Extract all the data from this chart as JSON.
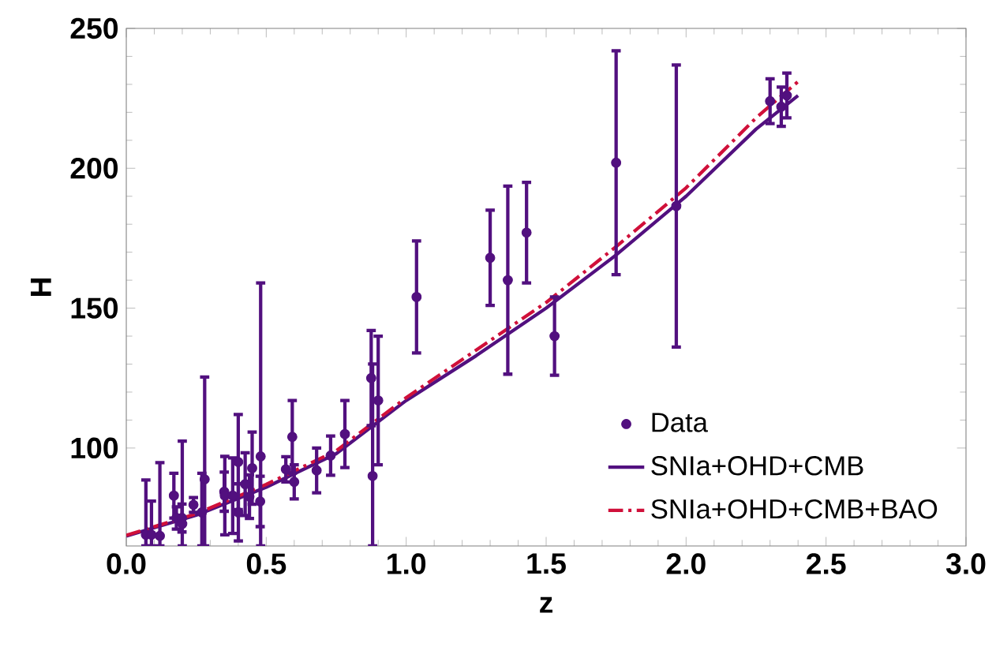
{
  "chart_data": {
    "type": "scatter",
    "xlabel": "z",
    "ylabel": "H",
    "xlim": [
      0,
      3
    ],
    "ylim": [
      65,
      250
    ],
    "xticks": [
      {
        "value": 0,
        "label": "0.0"
      },
      {
        "value": 0.5,
        "label": "0.5"
      },
      {
        "value": 1,
        "label": "1.0"
      },
      {
        "value": 1.5,
        "label": "1.5"
      },
      {
        "value": 2,
        "label": "2.0"
      },
      {
        "value": 2.5,
        "label": "2.5"
      },
      {
        "value": 3,
        "label": "3.0"
      }
    ],
    "yticks": [
      100,
      150,
      200,
      250
    ],
    "grid": false,
    "legend": "bottom right",
    "series": [
      {
        "name": "Data",
        "type": "scatter",
        "color": "#52107f",
        "marker": "circle",
        "x": [
          0.07,
          0.09,
          0.12,
          0.17,
          0.179,
          0.199,
          0.2,
          0.24,
          0.27,
          0.28,
          0.35,
          0.352,
          0.3802,
          0.4,
          0.4004,
          0.4247,
          0.44,
          0.4497,
          0.4783,
          0.48,
          0.57,
          0.593,
          0.6,
          0.68,
          0.73,
          0.781,
          0.875,
          0.88,
          0.9,
          1.037,
          1.3,
          1.363,
          1.43,
          1.53,
          1.75,
          1.965,
          2.3,
          2.34,
          2.36
        ],
        "values": [
          69,
          69,
          68.6,
          83,
          75,
          75,
          72.9,
          79.7,
          77,
          88.8,
          84.4,
          83,
          83,
          95,
          77,
          87.1,
          82.6,
          92.8,
          80.9,
          97,
          92.4,
          104,
          87.9,
          92,
          97.3,
          105,
          125,
          90,
          117,
          154,
          168,
          160,
          177,
          140,
          202,
          186.5,
          224,
          222,
          226
        ],
        "errors": [
          [
            65,
            88.6
          ],
          [
            65,
            81
          ],
          [
            65,
            94.8
          ],
          [
            75,
            91
          ],
          [
            71,
            79
          ],
          [
            70,
            80
          ],
          [
            65,
            102.5
          ],
          [
            77,
            82.3
          ],
          [
            65,
            91
          ],
          [
            65,
            125.4
          ],
          [
            77.4,
            91.4
          ],
          [
            69,
            97
          ],
          [
            69.5,
            96.5
          ],
          [
            78,
            112
          ],
          [
            66.8,
            87.2
          ],
          [
            75.9,
            98.3
          ],
          [
            74.8,
            90.4
          ],
          [
            79.9,
            105.7
          ],
          [
            71.9,
            89.9
          ],
          [
            65,
            159
          ],
          [
            87.9,
            96.9
          ],
          [
            91,
            117
          ],
          [
            81.8,
            94
          ],
          [
            84,
            100
          ],
          [
            90.3,
            104.3
          ],
          [
            93,
            117
          ],
          [
            108,
            142
          ],
          [
            65,
            130
          ],
          [
            94,
            140
          ],
          [
            134,
            174
          ],
          [
            151,
            185
          ],
          [
            126.4,
            193.6
          ],
          [
            159,
            195
          ],
          [
            126,
            154
          ],
          [
            162,
            242
          ],
          [
            136.1,
            236.9
          ],
          [
            216,
            232
          ],
          [
            215,
            229
          ],
          [
            218,
            234
          ]
        ]
      },
      {
        "name": "SNIa+OHD+CMB",
        "type": "line",
        "color": "#52107f",
        "line_style": "solid",
        "marker": "none",
        "x": [
          0,
          0.25,
          0.5,
          0.75,
          1,
          1.25,
          1.5,
          1.75,
          2,
          2.25,
          2.4
        ],
        "values": [
          68.5,
          76,
          86,
          98,
          117,
          133,
          150,
          169,
          190,
          214,
          226
        ]
      },
      {
        "name": "SNIa+OHD+CMB+BAO",
        "type": "line",
        "color": "#d0103a",
        "line_style": "dashdot",
        "marker": "none",
        "x": [
          0,
          0.25,
          0.5,
          0.75,
          1,
          1.25,
          1.5,
          1.75,
          2,
          2.25,
          2.4
        ],
        "values": [
          68.8,
          76.5,
          87,
          99,
          118,
          135,
          152,
          172,
          193,
          218,
          231
        ]
      }
    ]
  }
}
